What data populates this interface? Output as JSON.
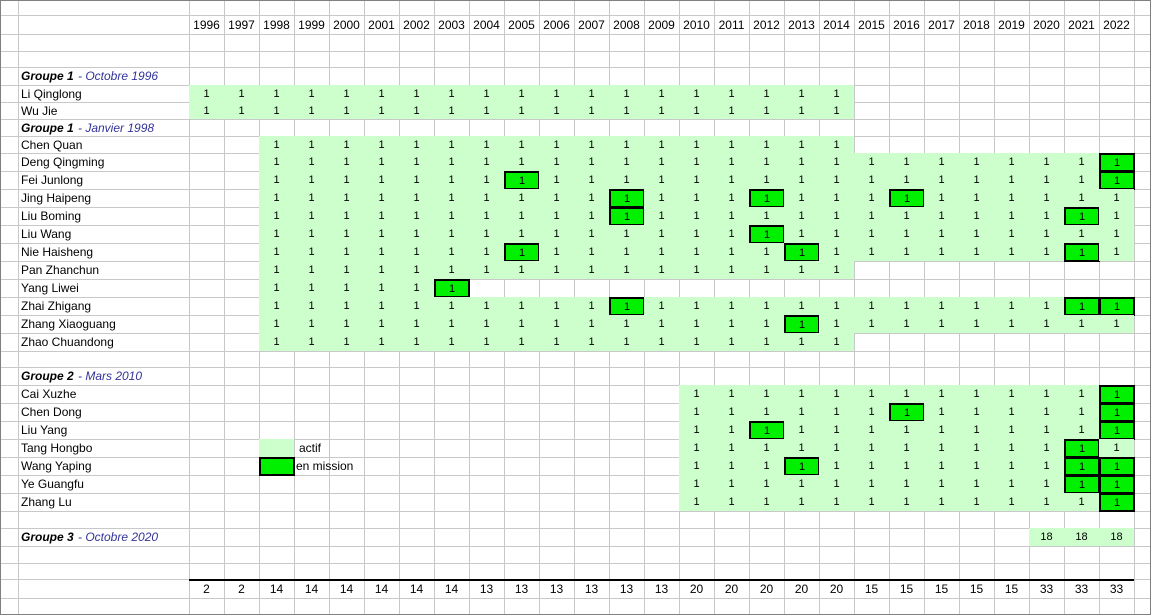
{
  "years": [
    1996,
    1997,
    1998,
    1999,
    2000,
    2001,
    2002,
    2003,
    2004,
    2005,
    2006,
    2007,
    2008,
    2009,
    2010,
    2011,
    2012,
    2013,
    2014,
    2015,
    2016,
    2017,
    2018,
    2019,
    2020,
    2021,
    2022
  ],
  "groups": [
    {
      "name": "Groupe 1",
      "date": "- Octobre 1996",
      "members": [
        {
          "name": "Li Qinglong",
          "cells": [
            1,
            1,
            1,
            1,
            1,
            1,
            1,
            1,
            1,
            1,
            1,
            1,
            1,
            1,
            1,
            1,
            1,
            1,
            1,
            null,
            null,
            null,
            null,
            null,
            null,
            null,
            null
          ],
          "missions": []
        },
        {
          "name": "Wu Jie",
          "cells": [
            1,
            1,
            1,
            1,
            1,
            1,
            1,
            1,
            1,
            1,
            1,
            1,
            1,
            1,
            1,
            1,
            1,
            1,
            1,
            null,
            null,
            null,
            null,
            null,
            null,
            null,
            null
          ],
          "missions": []
        }
      ]
    },
    {
      "name": "Groupe 1",
      "date": "- Janvier 1998",
      "members": [
        {
          "name": "Chen Quan",
          "cells": [
            null,
            null,
            1,
            1,
            1,
            1,
            1,
            1,
            1,
            1,
            1,
            1,
            1,
            1,
            1,
            1,
            1,
            1,
            1,
            null,
            null,
            null,
            null,
            null,
            null,
            null,
            null
          ],
          "missions": []
        },
        {
          "name": "Deng Qingming",
          "cells": [
            null,
            null,
            1,
            1,
            1,
            1,
            1,
            1,
            1,
            1,
            1,
            1,
            1,
            1,
            1,
            1,
            1,
            1,
            1,
            1,
            1,
            1,
            1,
            1,
            1,
            1,
            1
          ],
          "missions": [
            2022
          ]
        },
        {
          "name": "Fei Junlong",
          "cells": [
            null,
            null,
            1,
            1,
            1,
            1,
            1,
            1,
            1,
            1,
            1,
            1,
            1,
            1,
            1,
            1,
            1,
            1,
            1,
            1,
            1,
            1,
            1,
            1,
            1,
            1,
            1
          ],
          "missions": [
            2005,
            2022
          ]
        },
        {
          "name": "Jing Haipeng",
          "cells": [
            null,
            null,
            1,
            1,
            1,
            1,
            1,
            1,
            1,
            1,
            1,
            1,
            1,
            1,
            1,
            1,
            1,
            1,
            1,
            1,
            1,
            1,
            1,
            1,
            1,
            1,
            1
          ],
          "missions": [
            2008,
            2012,
            2016
          ]
        },
        {
          "name": "Liu Boming",
          "cells": [
            null,
            null,
            1,
            1,
            1,
            1,
            1,
            1,
            1,
            1,
            1,
            1,
            1,
            1,
            1,
            1,
            1,
            1,
            1,
            1,
            1,
            1,
            1,
            1,
            1,
            1,
            1
          ],
          "missions": [
            2008,
            2021
          ]
        },
        {
          "name": "Liu Wang",
          "cells": [
            null,
            null,
            1,
            1,
            1,
            1,
            1,
            1,
            1,
            1,
            1,
            1,
            1,
            1,
            1,
            1,
            1,
            1,
            1,
            1,
            1,
            1,
            1,
            1,
            1,
            1,
            1
          ],
          "missions": [
            2012
          ]
        },
        {
          "name": "Nie Haisheng",
          "cells": [
            null,
            null,
            1,
            1,
            1,
            1,
            1,
            1,
            1,
            1,
            1,
            1,
            1,
            1,
            1,
            1,
            1,
            1,
            1,
            1,
            1,
            1,
            1,
            1,
            1,
            1,
            1
          ],
          "missions": [
            2005,
            2013,
            2021
          ]
        },
        {
          "name": "Pan Zhanchun",
          "cells": [
            null,
            null,
            1,
            1,
            1,
            1,
            1,
            1,
            1,
            1,
            1,
            1,
            1,
            1,
            1,
            1,
            1,
            1,
            1,
            null,
            null,
            null,
            null,
            null,
            null,
            null,
            null
          ],
          "missions": []
        },
        {
          "name": "Yang Liwei",
          "cells": [
            null,
            null,
            1,
            1,
            1,
            1,
            1,
            1,
            null,
            null,
            null,
            null,
            null,
            null,
            null,
            null,
            null,
            null,
            null,
            null,
            null,
            null,
            null,
            null,
            null,
            null,
            null
          ],
          "missions": [
            2003
          ]
        },
        {
          "name": "Zhai Zhigang",
          "cells": [
            null,
            null,
            1,
            1,
            1,
            1,
            1,
            1,
            1,
            1,
            1,
            1,
            1,
            1,
            1,
            1,
            1,
            1,
            1,
            1,
            1,
            1,
            1,
            1,
            1,
            1,
            1
          ],
          "missions": [
            2008,
            2021,
            2022
          ]
        },
        {
          "name": "Zhang Xiaoguang",
          "cells": [
            null,
            null,
            1,
            1,
            1,
            1,
            1,
            1,
            1,
            1,
            1,
            1,
            1,
            1,
            1,
            1,
            1,
            1,
            1,
            1,
            1,
            1,
            1,
            1,
            1,
            1,
            1
          ],
          "missions": [
            2013
          ]
        },
        {
          "name": "Zhao Chuandong",
          "cells": [
            null,
            null,
            1,
            1,
            1,
            1,
            1,
            1,
            1,
            1,
            1,
            1,
            1,
            1,
            1,
            1,
            1,
            1,
            1,
            null,
            null,
            null,
            null,
            null,
            null,
            null,
            null
          ],
          "missions": []
        }
      ]
    },
    {
      "name": "Groupe 2",
      "date": "- Mars 2010",
      "members": [
        {
          "name": "Cai Xuzhe",
          "cells": [
            null,
            null,
            null,
            null,
            null,
            null,
            null,
            null,
            null,
            null,
            null,
            null,
            null,
            null,
            1,
            1,
            1,
            1,
            1,
            1,
            1,
            1,
            1,
            1,
            1,
            1,
            1
          ],
          "missions": [
            2022
          ]
        },
        {
          "name": "Chen Dong",
          "cells": [
            null,
            null,
            null,
            null,
            null,
            null,
            null,
            null,
            null,
            null,
            null,
            null,
            null,
            null,
            1,
            1,
            1,
            1,
            1,
            1,
            1,
            1,
            1,
            1,
            1,
            1,
            1
          ],
          "missions": [
            2016,
            2022
          ]
        },
        {
          "name": "Liu Yang",
          "cells": [
            null,
            null,
            null,
            null,
            null,
            null,
            null,
            null,
            null,
            null,
            null,
            null,
            null,
            null,
            1,
            1,
            1,
            1,
            1,
            1,
            1,
            1,
            1,
            1,
            1,
            1,
            1
          ],
          "missions": [
            2012,
            2022
          ]
        },
        {
          "name": "Tang Hongbo",
          "cells": [
            null,
            null,
            null,
            null,
            null,
            null,
            null,
            null,
            null,
            null,
            null,
            null,
            null,
            null,
            1,
            1,
            1,
            1,
            1,
            1,
            1,
            1,
            1,
            1,
            1,
            1,
            1
          ],
          "missions": [
            2021
          ]
        },
        {
          "name": "Wang Yaping",
          "cells": [
            null,
            null,
            null,
            null,
            null,
            null,
            null,
            null,
            null,
            null,
            null,
            null,
            null,
            null,
            1,
            1,
            1,
            1,
            1,
            1,
            1,
            1,
            1,
            1,
            1,
            1,
            1
          ],
          "missions": [
            2013,
            2021,
            2022
          ]
        },
        {
          "name": "Ye Guangfu",
          "cells": [
            null,
            null,
            null,
            null,
            null,
            null,
            null,
            null,
            null,
            null,
            null,
            null,
            null,
            null,
            1,
            1,
            1,
            1,
            1,
            1,
            1,
            1,
            1,
            1,
            1,
            1,
            1
          ],
          "missions": [
            2021,
            2022
          ]
        },
        {
          "name": "Zhang Lu",
          "cells": [
            null,
            null,
            null,
            null,
            null,
            null,
            null,
            null,
            null,
            null,
            null,
            null,
            null,
            null,
            1,
            1,
            1,
            1,
            1,
            1,
            1,
            1,
            1,
            1,
            1,
            1,
            1
          ],
          "missions": [
            2022
          ]
        }
      ]
    },
    {
      "name": "Groupe 3",
      "date": "- Octobre 2020",
      "cells": [
        null,
        null,
        null,
        null,
        null,
        null,
        null,
        null,
        null,
        null,
        null,
        null,
        null,
        null,
        null,
        null,
        null,
        null,
        null,
        null,
        null,
        null,
        null,
        null,
        18,
        18,
        18
      ],
      "members": []
    }
  ],
  "legend": {
    "active": "actif",
    "mission": "en mission"
  },
  "totals": [
    2,
    2,
    14,
    14,
    14,
    14,
    14,
    14,
    13,
    13,
    13,
    13,
    13,
    13,
    20,
    20,
    20,
    20,
    20,
    15,
    15,
    15,
    15,
    15,
    33,
    33,
    33
  ]
}
